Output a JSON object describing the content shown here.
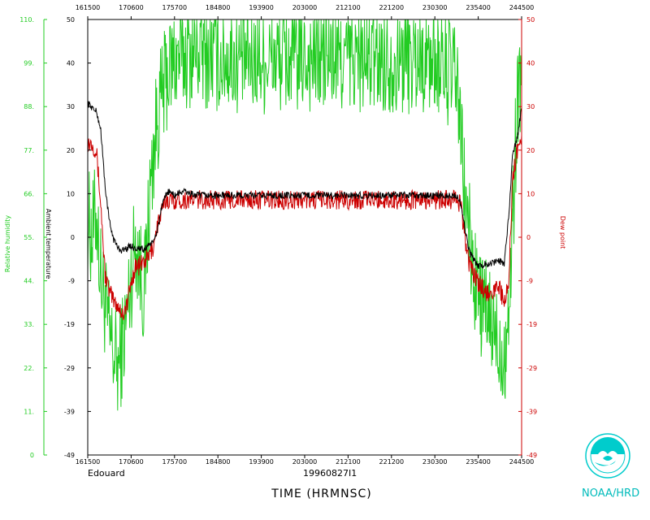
{
  "chart_data": {
    "type": "line",
    "storm_label": "Edouard",
    "flight_id": "19960827I1",
    "xlabel": "TIME (HRMNSC)",
    "x_ticks": [
      "161500",
      "170600",
      "175700",
      "184800",
      "193900",
      "203000",
      "212100",
      "221200",
      "230300",
      "235400",
      "244500"
    ],
    "left_axis": {
      "label": "Relative humidity",
      "color": "#22cc22",
      "ylim": [
        0,
        110
      ],
      "ticks": [
        "0",
        "11.",
        "22.",
        "33.",
        "44.",
        "55.",
        "66.",
        "77.",
        "88.",
        "99.",
        "110."
      ]
    },
    "temp_axis": {
      "label": "Ambient temperature",
      "color": "#000000",
      "ylim": [
        -49,
        50
      ],
      "ticks": [
        "-49",
        "-39",
        "-29",
        "-19",
        "-9",
        "0",
        "10",
        "20",
        "30",
        "40",
        "50"
      ]
    },
    "right_axis": {
      "label": "Dew point",
      "color": "#cc0000",
      "ylim": [
        -49,
        50
      ],
      "ticks": [
        "-49",
        "-39",
        "-29",
        "-19",
        "-9",
        "0",
        "10",
        "20",
        "30",
        "40",
        "50"
      ]
    },
    "series": [
      {
        "name": "Ambient temperature",
        "color": "#000000",
        "x": [
          0,
          0.01,
          0.02,
          0.03,
          0.04,
          0.05,
          0.06,
          0.07,
          0.08,
          0.09,
          0.1,
          0.11,
          0.12,
          0.13,
          0.14,
          0.15,
          0.16,
          0.17,
          0.18,
          0.185,
          0.2,
          0.22,
          0.25,
          0.3,
          0.35,
          0.4,
          0.45,
          0.5,
          0.55,
          0.6,
          0.65,
          0.7,
          0.75,
          0.8,
          0.85,
          0.86,
          0.87,
          0.88,
          0.9,
          0.92,
          0.95,
          0.96,
          0.97,
          0.98,
          0.99,
          1.0
        ],
        "y": [
          31,
          30,
          29,
          25,
          12,
          4,
          0,
          -2,
          -2.5,
          -2,
          -1.5,
          -2,
          -2,
          -2.5,
          -1,
          -1,
          2,
          7,
          10,
          11,
          10,
          11,
          10,
          10,
          10,
          10,
          10,
          10,
          10,
          10,
          10,
          10,
          10,
          10,
          10,
          8,
          2,
          -3,
          -6,
          -5.5,
          -5,
          -5.5,
          5,
          20,
          23,
          30
        ]
      },
      {
        "name": "Dew point",
        "color": "#cc0000",
        "x": [
          0,
          0.01,
          0.02,
          0.03,
          0.04,
          0.05,
          0.06,
          0.07,
          0.08,
          0.09,
          0.1,
          0.11,
          0.12,
          0.13,
          0.14,
          0.15,
          0.16,
          0.17,
          0.18,
          0.2,
          0.25,
          0.3,
          0.35,
          0.4,
          0.45,
          0.5,
          0.55,
          0.6,
          0.65,
          0.7,
          0.75,
          0.8,
          0.85,
          0.86,
          0.87,
          0.88,
          0.9,
          0.92,
          0.95,
          0.96,
          0.97,
          0.98,
          0.99,
          1.0
        ],
        "y": [
          22,
          22,
          20,
          8,
          -8,
          -12,
          -14,
          -15,
          -17,
          -15,
          -10,
          -6,
          -6,
          -5,
          -4,
          -2,
          3,
          6,
          9,
          9,
          9,
          9,
          9,
          9,
          9,
          9,
          9,
          9,
          9,
          9,
          9,
          9,
          9,
          8,
          0,
          -6,
          -10,
          -12,
          -11,
          -15,
          -10,
          15,
          20,
          24
        ]
      },
      {
        "name": "Relative humidity",
        "color": "#22cc22",
        "x": [
          0,
          0.01,
          0.02,
          0.03,
          0.04,
          0.05,
          0.06,
          0.07,
          0.08,
          0.09,
          0.1,
          0.11,
          0.12,
          0.13,
          0.14,
          0.15,
          0.16,
          0.17,
          0.18,
          0.2,
          0.25,
          0.3,
          0.35,
          0.4,
          0.45,
          0.5,
          0.55,
          0.6,
          0.65,
          0.7,
          0.75,
          0.8,
          0.85,
          0.86,
          0.87,
          0.88,
          0.89,
          0.9,
          0.92,
          0.94,
          0.95,
          0.96,
          0.97,
          0.98,
          0.99,
          1.0
        ],
        "y": [
          60,
          55,
          62,
          45,
          38,
          30,
          25,
          22,
          28,
          35,
          45,
          55,
          48,
          40,
          60,
          75,
          85,
          90,
          95,
          100,
          102,
          100,
          100,
          100,
          100,
          100,
          100,
          100,
          100,
          100,
          100,
          100,
          95,
          80,
          65,
          55,
          45,
          40,
          35,
          30,
          28,
          25,
          35,
          60,
          90,
          98
        ]
      }
    ]
  }
}
